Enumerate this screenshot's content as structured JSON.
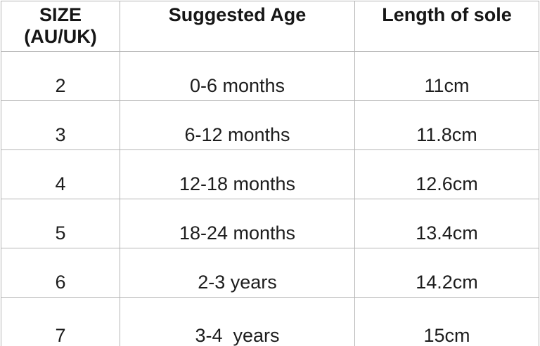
{
  "colors": {
    "background": "#ffffff",
    "grid_line": "#b5b5b5",
    "text": "#1d1d1d"
  },
  "chart_data": {
    "type": "table",
    "columns": [
      "SIZE\n(AU/UK)",
      "Suggested Age",
      "Length of sole"
    ],
    "rows": [
      [
        "2",
        "0-6 months",
        "11cm"
      ],
      [
        "3",
        "6-12 months",
        "11.8cm"
      ],
      [
        "4",
        "12-18 months",
        "12.6cm"
      ],
      [
        "5",
        "18-24 months",
        "13.4cm"
      ],
      [
        "6",
        "2-3 years",
        "14.2cm"
      ],
      [
        "7",
        "3-4  years",
        "15cm"
      ]
    ]
  }
}
